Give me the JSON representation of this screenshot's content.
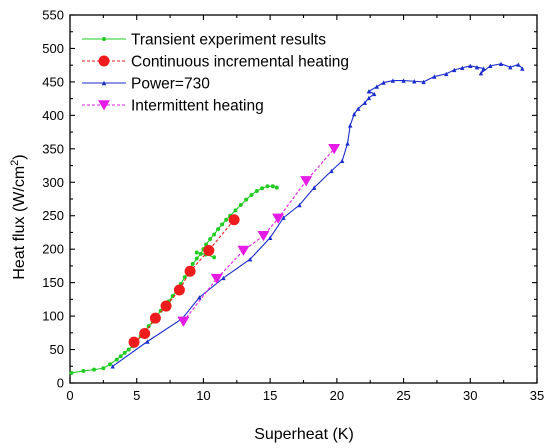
{
  "chart_data": {
    "type": "line",
    "xlabel": "Superheat (K)",
    "ylabel": "Heat flux (W/cm²)",
    "ylabel_parts": {
      "base": "Heat flux (W/cm",
      "sup": "2",
      "close": ")"
    },
    "xlim": [
      0,
      35
    ],
    "ylim": [
      0,
      550
    ],
    "xticks": [
      0,
      5,
      10,
      15,
      20,
      25,
      30,
      35
    ],
    "yticks": [
      0,
      50,
      100,
      150,
      200,
      250,
      300,
      350,
      400,
      450,
      500,
      550
    ],
    "grid": false,
    "legend_position": "top-left",
    "series": [
      {
        "name": "Transient experiment results",
        "color": "#22cc22",
        "line_style": "solid",
        "marker": "small-circle",
        "points": [
          [
            0.1,
            15
          ],
          [
            1.0,
            18
          ],
          [
            1.8,
            20
          ],
          [
            2.5,
            22
          ],
          [
            3.0,
            28
          ],
          [
            3.5,
            35
          ],
          [
            3.8,
            40
          ],
          [
            4.1,
            45
          ],
          [
            4.4,
            50
          ],
          [
            4.7,
            55
          ],
          [
            5.0,
            62
          ],
          [
            5.3,
            70
          ],
          [
            5.6,
            78
          ],
          [
            5.9,
            85
          ],
          [
            6.2,
            92
          ],
          [
            6.5,
            100
          ],
          [
            6.8,
            108
          ],
          [
            7.1,
            115
          ],
          [
            7.4,
            122
          ],
          [
            7.7,
            130
          ],
          [
            8.0,
            138
          ],
          [
            8.3,
            148
          ],
          [
            8.6,
            158
          ],
          [
            8.9,
            168
          ],
          [
            9.2,
            178
          ],
          [
            9.5,
            186
          ],
          [
            9.8,
            193
          ],
          [
            10.0,
            200
          ],
          [
            10.2,
            207
          ],
          [
            10.5,
            215
          ],
          [
            10.8,
            222
          ],
          [
            11.1,
            230
          ],
          [
            11.4,
            237
          ],
          [
            11.7,
            244
          ],
          [
            12.0,
            250
          ],
          [
            12.4,
            258
          ],
          [
            12.8,
            266
          ],
          [
            13.2,
            274
          ],
          [
            13.6,
            281
          ],
          [
            14.0,
            287
          ],
          [
            14.4,
            291
          ],
          [
            14.8,
            294
          ],
          [
            15.2,
            294
          ],
          [
            15.5,
            292
          ]
        ],
        "tail_points": [
          [
            9.5,
            195
          ],
          [
            10.2,
            192
          ],
          [
            10.8,
            188
          ]
        ]
      },
      {
        "name": "Continuous incremental heating",
        "color": "#ee1c1c",
        "line_style": "dashed",
        "marker": "circle",
        "points": [
          [
            4.8,
            61
          ],
          [
            5.6,
            74
          ],
          [
            6.4,
            97
          ],
          [
            7.2,
            115
          ],
          [
            8.2,
            139
          ],
          [
            9.0,
            167
          ],
          [
            10.4,
            198
          ],
          [
            12.3,
            244
          ]
        ]
      },
      {
        "name": "Power=730",
        "color": "#1a2ccc",
        "line_style": "solid",
        "marker": "small-triangle",
        "points": [
          [
            3.2,
            25
          ],
          [
            5.8,
            62
          ],
          [
            8.4,
            96
          ],
          [
            9.7,
            128
          ],
          [
            11.5,
            157
          ],
          [
            13.5,
            185
          ],
          [
            15.0,
            217
          ],
          [
            16.0,
            247
          ],
          [
            17.2,
            266
          ],
          [
            18.3,
            292
          ],
          [
            19.6,
            317
          ],
          [
            20.4,
            332
          ],
          [
            20.8,
            358
          ],
          [
            21.0,
            385
          ],
          [
            21.3,
            402
          ],
          [
            21.6,
            410
          ],
          [
            22.1,
            419
          ],
          [
            22.4,
            426
          ],
          [
            22.8,
            432
          ],
          [
            22.4,
            436
          ],
          [
            23.0,
            443
          ],
          [
            23.5,
            449
          ],
          [
            24.2,
            452
          ],
          [
            25.0,
            452
          ],
          [
            25.8,
            451
          ],
          [
            26.5,
            450
          ],
          [
            27.3,
            458
          ],
          [
            28.2,
            462
          ],
          [
            28.8,
            468
          ],
          [
            29.4,
            471
          ],
          [
            30.0,
            474
          ],
          [
            30.5,
            472
          ],
          [
            31.0,
            470
          ],
          [
            30.8,
            463
          ],
          [
            31.5,
            474
          ],
          [
            32.3,
            477
          ],
          [
            33.0,
            472
          ],
          [
            33.6,
            476
          ],
          [
            33.9,
            470
          ]
        ]
      },
      {
        "name": "Intermittent heating",
        "color": "#e61ce6",
        "line_style": "dashed",
        "marker": "inverted-triangle",
        "points": [
          [
            8.5,
            92
          ],
          [
            11.0,
            156
          ],
          [
            13.0,
            198
          ],
          [
            14.5,
            220
          ],
          [
            15.6,
            246
          ],
          [
            17.7,
            302
          ],
          [
            19.8,
            350
          ]
        ]
      }
    ]
  }
}
